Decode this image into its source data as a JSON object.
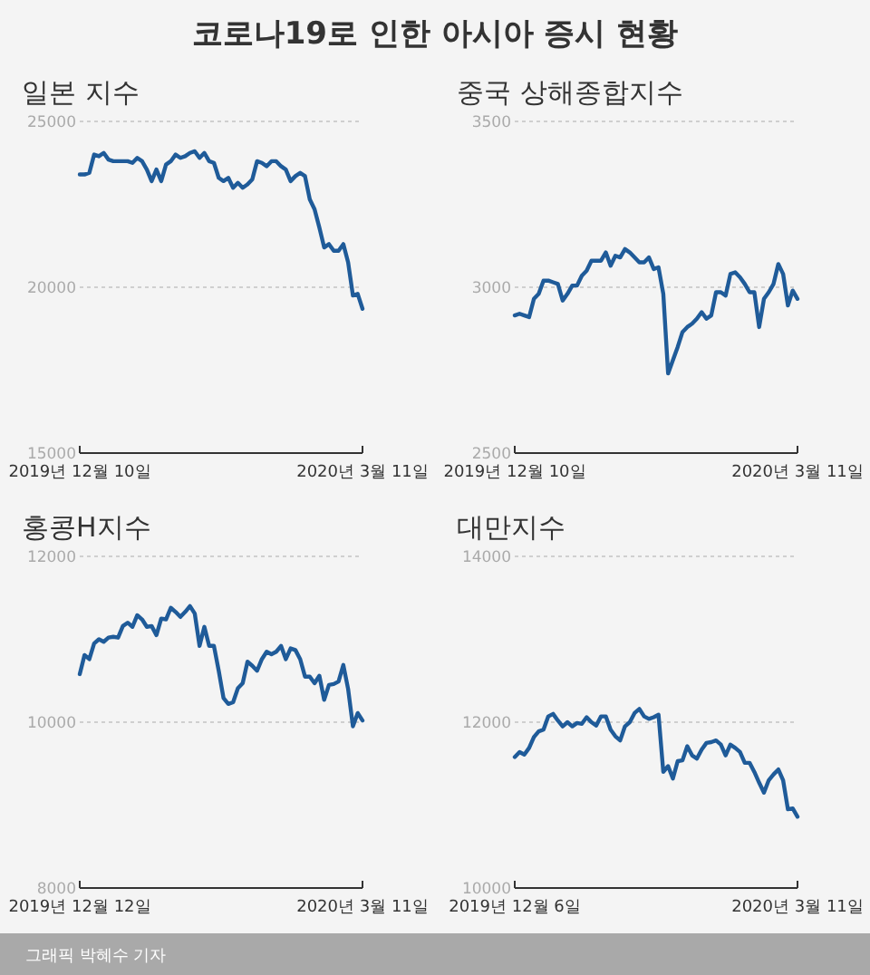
{
  "chart_data": [
    {
      "type": "other",
      "title": "코로나19로 인한 아시아 증시 현황",
      "annotations": [
        "그래픽 박혜수 기자"
      ]
    },
    {
      "type": "line",
      "title": "일본 지수",
      "categories": [
        "2019년 12월 10일",
        null,
        null,
        null,
        null,
        null,
        null,
        null,
        null,
        null,
        null,
        null,
        null,
        null,
        null,
        null,
        null,
        null,
        null,
        null,
        null,
        null,
        null,
        null,
        null,
        null,
        null,
        null,
        null,
        null,
        null,
        null,
        null,
        null,
        null,
        null,
        null,
        null,
        null,
        null,
        null,
        null,
        null,
        null,
        null,
        null,
        null,
        null,
        null,
        null,
        null,
        null,
        null,
        null,
        null,
        null,
        null,
        null,
        null,
        "2020년 3월 11일"
      ],
      "ylim": [
        15000,
        25000
      ],
      "yticks": [
        15000,
        20000,
        25000
      ],
      "grid": "y",
      "series": [
        {
          "color": "#1f5b99",
          "values": [
            23400,
            23400,
            23450,
            24000,
            23950,
            24050,
            23850,
            23800,
            23800,
            23800,
            23800,
            23750,
            23900,
            23800,
            23550,
            23200,
            23550,
            23200,
            23700,
            23800,
            24000,
            23900,
            23950,
            24050,
            24100,
            23900,
            24050,
            23800,
            23750,
            23300,
            23200,
            23300,
            23000,
            23150,
            23000,
            23100,
            23250,
            23800,
            23750,
            23650,
            23800,
            23800,
            23650,
            23550,
            23200,
            23350,
            23450,
            23350,
            22650,
            22350,
            21800,
            21200,
            21300,
            21100,
            21100,
            21300,
            20750,
            19750,
            19800,
            19350
          ]
        }
      ]
    },
    {
      "type": "line",
      "title": "중국 상해종합지수",
      "categories": [
        "2019년 12월 10일",
        null,
        null,
        null,
        null,
        null,
        null,
        null,
        null,
        null,
        null,
        null,
        null,
        null,
        null,
        null,
        null,
        null,
        null,
        null,
        null,
        null,
        null,
        null,
        null,
        null,
        null,
        null,
        null,
        null,
        null,
        null,
        null,
        null,
        null,
        null,
        null,
        null,
        null,
        null,
        null,
        null,
        null,
        null,
        null,
        null,
        null,
        null,
        null,
        null,
        null,
        null,
        null,
        null,
        null,
        null,
        null,
        null,
        null,
        "2020년 3월 11일"
      ],
      "ylim": [
        2500,
        3500
      ],
      "yticks": [
        2500,
        3000,
        3500
      ],
      "grid": "y",
      "series": [
        {
          "color": "#1f5b99",
          "values": [
            2915,
            2920,
            2915,
            2910,
            2965,
            2980,
            3020,
            3020,
            3015,
            3010,
            2960,
            2980,
            3005,
            3005,
            3035,
            3050,
            3080,
            3080,
            3080,
            3105,
            3065,
            3095,
            3090,
            3115,
            3105,
            3090,
            3075,
            3075,
            3090,
            3055,
            3060,
            2980,
            2740,
            2780,
            2820,
            2865,
            2880,
            2890,
            2905,
            2925,
            2905,
            2915,
            2985,
            2985,
            2975,
            3040,
            3045,
            3030,
            3010,
            2985,
            2985,
            2880,
            2965,
            2985,
            3010,
            3070,
            3040,
            2945,
            2990,
            2965
          ]
        }
      ]
    },
    {
      "type": "line",
      "title": "홍콩H지수",
      "categories": [
        "2019년 12월 12일",
        null,
        null,
        null,
        null,
        null,
        null,
        null,
        null,
        null,
        null,
        null,
        null,
        null,
        null,
        null,
        null,
        null,
        null,
        null,
        null,
        null,
        null,
        null,
        null,
        null,
        null,
        null,
        null,
        null,
        null,
        null,
        null,
        null,
        null,
        null,
        null,
        null,
        null,
        null,
        null,
        null,
        null,
        null,
        null,
        null,
        null,
        null,
        null,
        null,
        null,
        null,
        null,
        null,
        null,
        null,
        null,
        null,
        null,
        "2020년 3월 11일"
      ],
      "ylim": [
        8000,
        12000
      ],
      "yticks": [
        8000,
        10000,
        12000
      ],
      "grid": "y",
      "series": [
        {
          "color": "#1f5b99",
          "values": [
            10580,
            10810,
            10760,
            10950,
            11000,
            10970,
            11020,
            11030,
            11020,
            11160,
            11200,
            11150,
            11290,
            11240,
            11150,
            11160,
            11050,
            11250,
            11240,
            11380,
            11330,
            11270,
            11330,
            11400,
            11310,
            10920,
            11150,
            10920,
            10920,
            10620,
            10290,
            10220,
            10240,
            10410,
            10470,
            10730,
            10680,
            10620,
            10760,
            10850,
            10820,
            10850,
            10920,
            10760,
            10890,
            10870,
            10760,
            10550,
            10550,
            10470,
            10560,
            10270,
            10450,
            10460,
            10490,
            10690,
            10400,
            9950,
            10110,
            10020
          ]
        }
      ]
    },
    {
      "type": "line",
      "title": "대만지수",
      "categories": [
        "2019년 12월 6일",
        null,
        null,
        null,
        null,
        null,
        null,
        null,
        null,
        null,
        null,
        null,
        null,
        null,
        null,
        null,
        null,
        null,
        null,
        null,
        null,
        null,
        null,
        null,
        null,
        null,
        null,
        null,
        null,
        null,
        null,
        null,
        null,
        null,
        null,
        null,
        null,
        null,
        null,
        null,
        null,
        null,
        null,
        null,
        null,
        null,
        null,
        null,
        null,
        null,
        null,
        null,
        null,
        null,
        null,
        null,
        null,
        null,
        null,
        "2020년 3월 11일"
      ],
      "ylim": [
        10000,
        14000
      ],
      "yticks": [
        10000,
        12000,
        14000
      ],
      "grid": "y",
      "series": [
        {
          "color": "#1f5b99",
          "values": [
            11580,
            11640,
            11610,
            11690,
            11820,
            11890,
            11910,
            12070,
            12100,
            12020,
            11950,
            12000,
            11950,
            11990,
            11980,
            12060,
            12000,
            11960,
            12070,
            12070,
            11910,
            11830,
            11780,
            11950,
            12000,
            12110,
            12160,
            12070,
            12040,
            12060,
            12090,
            11400,
            11470,
            11320,
            11530,
            11540,
            11710,
            11600,
            11560,
            11670,
            11750,
            11760,
            11780,
            11730,
            11600,
            11730,
            11690,
            11640,
            11510,
            11510,
            11400,
            11270,
            11150,
            11300,
            11370,
            11430,
            11300,
            10950,
            10960,
            10860
          ]
        }
      ]
    }
  ]
}
